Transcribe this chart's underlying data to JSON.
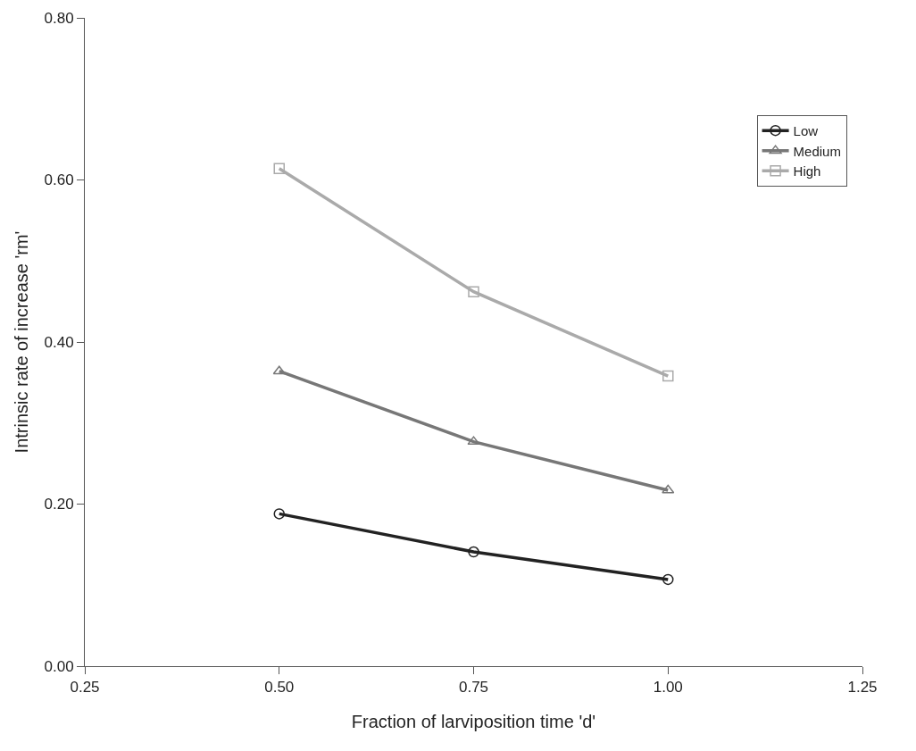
{
  "chart_data": {
    "type": "line",
    "xlabel": "Fraction of larviposition time 'd'",
    "ylabel": "Intrinsic rate of increase 'rm'",
    "x": [
      0.5,
      0.75,
      1.0
    ],
    "series": [
      {
        "name": "Low",
        "color": "#222222",
        "marker": "circle",
        "values": [
          0.188,
          0.141,
          0.107
        ]
      },
      {
        "name": "Medium",
        "color": "#777777",
        "marker": "triangle",
        "values": [
          0.364,
          0.277,
          0.217
        ]
      },
      {
        "name": "High",
        "color": "#aaaaaa",
        "marker": "square",
        "values": [
          0.614,
          0.462,
          0.358
        ]
      }
    ],
    "xlim": [
      0.25,
      1.25
    ],
    "xticks": [
      {
        "value": 0.25,
        "label": "0.25"
      },
      {
        "value": 0.5,
        "label": "0.50"
      },
      {
        "value": 0.75,
        "label": "0.75"
      },
      {
        "value": 1.0,
        "label": "1.00"
      },
      {
        "value": 1.25,
        "label": "1.25"
      }
    ],
    "ylim": [
      0,
      0.8
    ],
    "yticks": [
      {
        "value": 0,
        "label": "0.00"
      },
      {
        "value": 0.2,
        "label": "0.20"
      },
      {
        "value": 0.4,
        "label": "0.40"
      },
      {
        "value": 0.6,
        "label": "0.60"
      },
      {
        "value": 0.8,
        "label": "0.80"
      }
    ],
    "legend": "top right",
    "line_style": "solid"
  }
}
